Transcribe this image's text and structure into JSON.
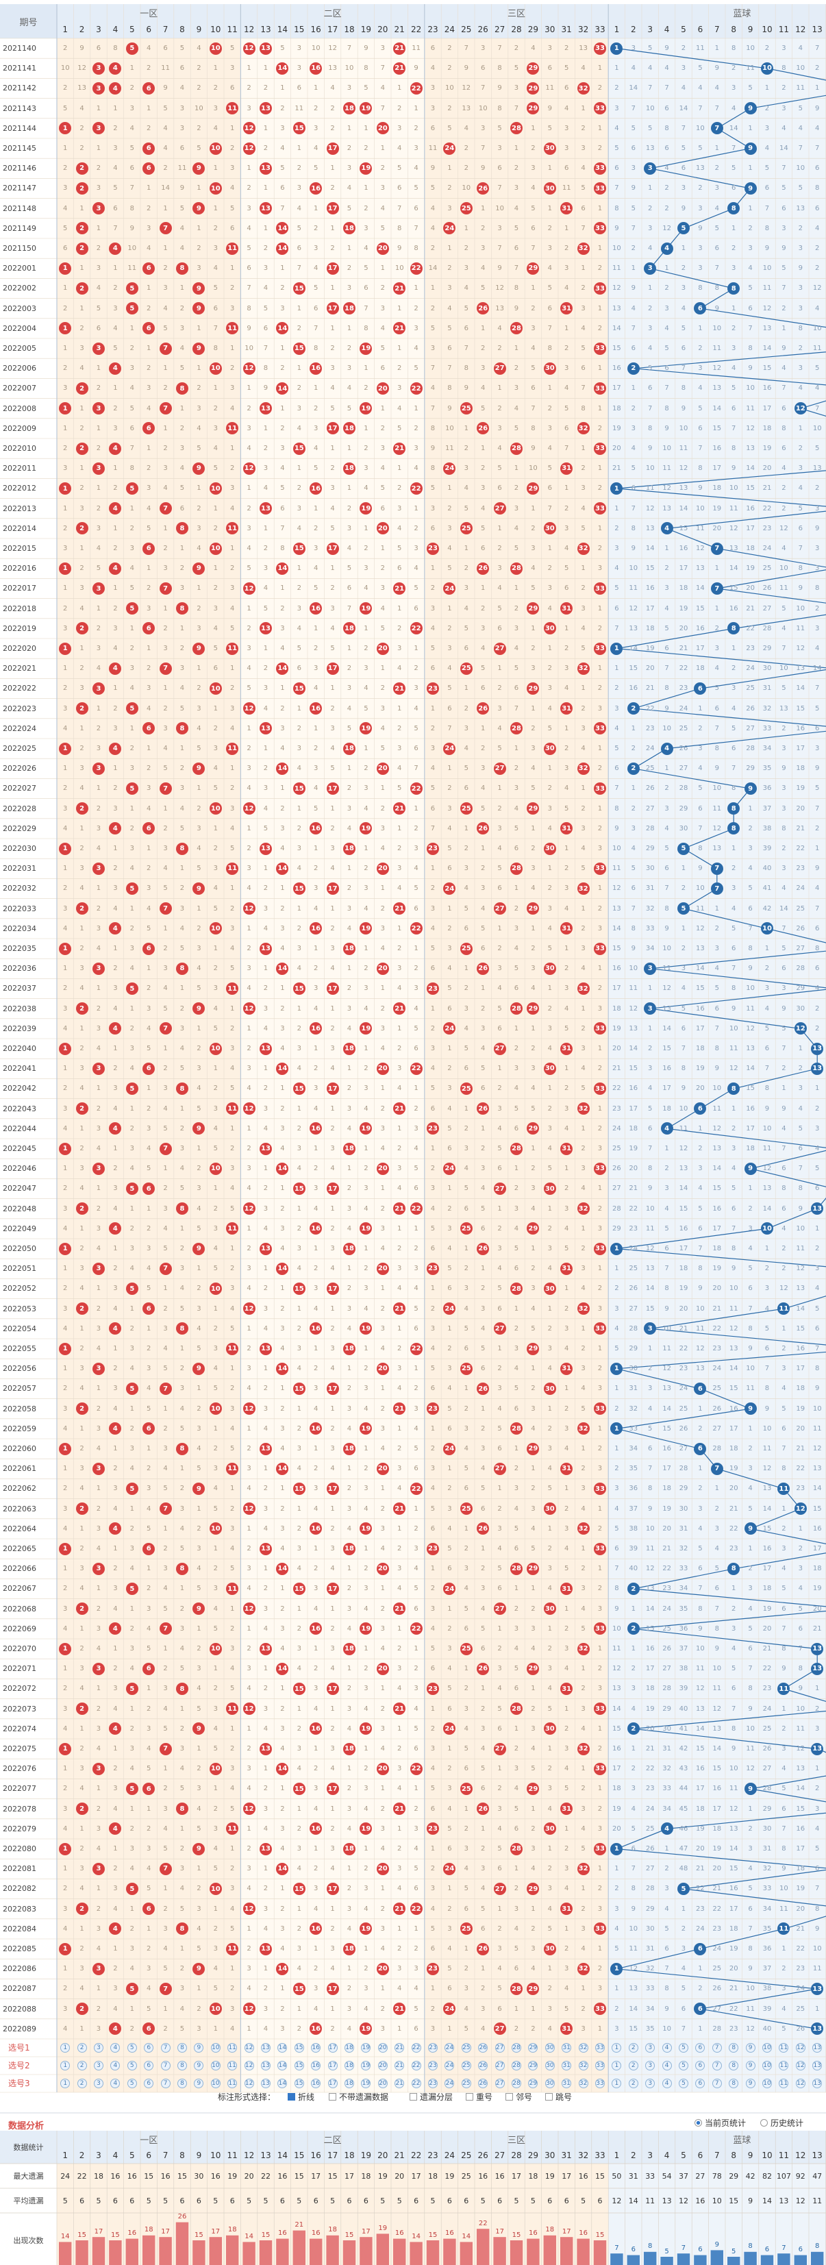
{
  "header": {
    "period_label": "期号",
    "zones": [
      "一区",
      "二区",
      "三区",
      "蓝球"
    ]
  },
  "periods": [
    "2021140",
    "2021141",
    "2021142",
    "2021143",
    "2021144",
    "2021145",
    "2021146",
    "2021147",
    "2021148",
    "2021149",
    "2021150",
    "2022001",
    "2022002",
    "2022003",
    "2022004",
    "2022005",
    "2022006",
    "2022007",
    "2022008",
    "2022009",
    "2022010",
    "2022011",
    "2022012",
    "2022013",
    "2022014",
    "2022015",
    "2022016",
    "2022017",
    "2022018",
    "2022019",
    "2022020",
    "2022021",
    "2022022",
    "2022023",
    "2022024",
    "2022025",
    "2022026",
    "2022027",
    "2022028",
    "2022029",
    "2022030",
    "2022031",
    "2022032",
    "2022033",
    "2022034",
    "2022035",
    "2022036",
    "2022037",
    "2022038",
    "2022039",
    "2022040",
    "2022041",
    "2022042",
    "2022043",
    "2022044",
    "2022045",
    "2022046",
    "2022047",
    "2022048",
    "2022049",
    "2022050",
    "2022051",
    "2022052",
    "2022053",
    "2022054",
    "2022055",
    "2022056",
    "2022057",
    "2022058",
    "2022059",
    "2022060",
    "2022061",
    "2022062",
    "2022063",
    "2022064",
    "2022065",
    "2022066",
    "2022067",
    "2022068",
    "2022069",
    "2022070",
    "2022071",
    "2022072",
    "2022073",
    "2022074",
    "2022075",
    "2022076",
    "2022077",
    "2022078",
    "2022079",
    "2022080",
    "2022081",
    "2022082",
    "2022083",
    "2022084",
    "2022085",
    "2022086",
    "2022087",
    "2022088",
    "2022089"
  ],
  "chart_data": {
    "type": "table",
    "red_range": [
      1,
      33
    ],
    "blue_range": [
      1,
      16
    ],
    "blue_balls": [
      1,
      10,
      16,
      9,
      7,
      9,
      3,
      9,
      8,
      5,
      4,
      3,
      8,
      6,
      14,
      16,
      2,
      16,
      12,
      16,
      15,
      15,
      1,
      15,
      4,
      7,
      14,
      7,
      16,
      8,
      1,
      14,
      6,
      2,
      15,
      4,
      2,
      9,
      8,
      8,
      5,
      7,
      7,
      5,
      10,
      15,
      3,
      14,
      3,
      12,
      13,
      13,
      8,
      6,
      4,
      14,
      9,
      14,
      13,
      10,
      1,
      15,
      15,
      11,
      3,
      16,
      1,
      6,
      9,
      1,
      6,
      7,
      11,
      12,
      9,
      15,
      8,
      2,
      15,
      2,
      13,
      13,
      11,
      15,
      2,
      13,
      16,
      9,
      16,
      4,
      1,
      14,
      5,
      15,
      11,
      6,
      1,
      13,
      6,
      13
    ],
    "red_balls": [
      [
        5,
        10,
        12,
        13,
        21,
        33
      ],
      [
        3,
        4,
        14,
        16,
        21,
        29
      ],
      [
        3,
        4,
        6,
        22,
        29,
        32
      ],
      [
        11,
        13,
        18,
        19,
        29,
        33
      ],
      [
        1,
        3,
        12,
        15,
        20,
        28
      ],
      [
        6,
        10,
        12,
        17,
        24,
        30
      ],
      [
        2,
        6,
        9,
        13,
        19,
        33
      ],
      [
        2,
        10,
        16,
        26,
        30,
        33
      ],
      [
        3,
        9,
        13,
        17,
        25,
        31
      ],
      [
        2,
        7,
        14,
        18,
        24,
        33
      ],
      [
        2,
        4,
        11,
        14,
        20,
        32
      ],
      [
        1,
        6,
        8,
        17,
        22,
        29
      ],
      [
        2,
        5,
        9,
        15,
        21,
        33
      ],
      [
        5,
        9,
        17,
        18,
        26,
        31
      ],
      [
        1,
        6,
        11,
        14,
        21,
        28
      ],
      [
        3,
        7,
        9,
        15,
        19,
        33
      ],
      [
        4,
        10,
        12,
        16,
        27,
        30
      ],
      [
        2,
        8,
        14,
        20,
        22,
        33
      ],
      [
        1,
        3,
        7,
        13,
        19,
        25
      ],
      [
        6,
        11,
        17,
        18,
        26,
        32
      ],
      [
        2,
        4,
        15,
        21,
        28,
        33
      ],
      [
        3,
        9,
        12,
        18,
        24,
        31
      ],
      [
        1,
        5,
        10,
        16,
        22,
        29
      ],
      [
        4,
        7,
        13,
        19,
        27,
        33
      ],
      [
        2,
        8,
        11,
        20,
        25,
        30
      ],
      [
        6,
        10,
        15,
        17,
        23,
        32
      ],
      [
        1,
        4,
        9,
        14,
        26,
        28
      ],
      [
        3,
        7,
        12,
        21,
        24,
        33
      ],
      [
        5,
        8,
        16,
        19,
        29,
        31
      ],
      [
        2,
        6,
        13,
        18,
        22,
        30
      ],
      [
        1,
        9,
        11,
        20,
        27,
        33
      ],
      [
        4,
        7,
        14,
        17,
        25,
        32
      ],
      [
        3,
        10,
        15,
        21,
        23,
        29
      ],
      [
        2,
        5,
        12,
        16,
        26,
        31
      ],
      [
        6,
        8,
        13,
        19,
        28,
        33
      ],
      [
        1,
        4,
        11,
        18,
        24,
        30
      ],
      [
        3,
        9,
        14,
        20,
        27,
        32
      ],
      [
        5,
        7,
        15,
        17,
        22,
        33
      ],
      [
        2,
        10,
        12,
        21,
        25,
        29
      ],
      [
        4,
        6,
        16,
        19,
        26,
        31
      ],
      [
        1,
        8,
        13,
        18,
        23,
        30
      ],
      [
        3,
        11,
        14,
        20,
        28,
        33
      ],
      [
        5,
        9,
        15,
        17,
        24,
        32
      ],
      [
        2,
        7,
        12,
        21,
        27,
        29
      ],
      [
        4,
        10,
        16,
        19,
        22,
        31
      ],
      [
        1,
        6,
        13,
        18,
        25,
        33
      ],
      [
        3,
        8,
        14,
        20,
        26,
        30
      ],
      [
        5,
        11,
        15,
        17,
        23,
        32
      ],
      [
        2,
        9,
        12,
        21,
        28,
        29
      ],
      [
        4,
        7,
        16,
        19,
        24,
        33
      ],
      [
        1,
        10,
        13,
        18,
        27,
        31
      ],
      [
        3,
        6,
        14,
        20,
        22,
        30
      ],
      [
        5,
        8,
        15,
        17,
        25,
        33
      ],
      [
        2,
        11,
        12,
        21,
        26,
        32
      ],
      [
        4,
        9,
        16,
        19,
        23,
        29
      ],
      [
        1,
        7,
        13,
        18,
        28,
        31
      ],
      [
        3,
        10,
        14,
        20,
        24,
        33
      ],
      [
        5,
        6,
        15,
        17,
        27,
        30
      ],
      [
        2,
        8,
        12,
        21,
        22,
        32
      ],
      [
        4,
        11,
        16,
        19,
        25,
        29
      ],
      [
        1,
        9,
        13,
        18,
        26,
        33
      ],
      [
        3,
        7,
        14,
        20,
        23,
        31
      ],
      [
        5,
        10,
        15,
        17,
        28,
        30
      ],
      [
        2,
        6,
        12,
        21,
        24,
        32
      ],
      [
        4,
        8,
        16,
        19,
        27,
        33
      ],
      [
        1,
        11,
        13,
        18,
        22,
        29
      ],
      [
        3,
        9,
        14,
        20,
        25,
        31
      ],
      [
        5,
        7,
        15,
        17,
        26,
        30
      ],
      [
        2,
        10,
        12,
        21,
        23,
        33
      ],
      [
        4,
        6,
        16,
        19,
        28,
        32
      ],
      [
        1,
        8,
        13,
        18,
        24,
        29
      ],
      [
        3,
        11,
        14,
        20,
        27,
        31
      ],
      [
        5,
        9,
        15,
        17,
        22,
        33
      ],
      [
        2,
        7,
        12,
        21,
        25,
        30
      ],
      [
        4,
        10,
        16,
        19,
        26,
        32
      ],
      [
        1,
        6,
        13,
        18,
        23,
        33
      ],
      [
        3,
        8,
        14,
        20,
        28,
        29
      ],
      [
        5,
        11,
        15,
        17,
        24,
        31
      ],
      [
        2,
        9,
        12,
        21,
        27,
        30
      ],
      [
        4,
        7,
        16,
        19,
        22,
        33
      ],
      [
        1,
        10,
        13,
        18,
        25,
        32
      ],
      [
        3,
        6,
        14,
        20,
        26,
        29
      ],
      [
        5,
        8,
        15,
        17,
        23,
        31
      ],
      [
        2,
        11,
        12,
        21,
        28,
        33
      ],
      [
        4,
        9,
        16,
        19,
        24,
        30
      ],
      [
        1,
        7,
        13,
        18,
        27,
        32
      ],
      [
        3,
        10,
        14,
        20,
        22,
        33
      ],
      [
        5,
        6,
        15,
        17,
        25,
        29
      ],
      [
        2,
        8,
        12,
        21,
        26,
        31
      ],
      [
        4,
        11,
        16,
        19,
        23,
        30
      ],
      [
        1,
        9,
        13,
        18,
        28,
        33
      ],
      [
        3,
        7,
        14,
        20,
        24,
        32
      ],
      [
        5,
        10,
        15,
        17,
        27,
        29
      ],
      [
        2,
        6,
        12,
        21,
        22,
        31
      ],
      [
        4,
        8,
        16,
        19,
        25,
        33
      ],
      [
        1,
        11,
        13,
        18,
        26,
        30
      ],
      [
        3,
        9,
        14,
        20,
        23,
        32
      ],
      [
        5,
        7,
        15,
        17,
        28,
        29
      ],
      [
        2,
        10,
        12,
        21,
        24,
        33
      ],
      [
        4,
        6,
        16,
        19,
        27,
        31
      ]
    ],
    "miss_sample": [
      3,
      0,
      2,
      1,
      4,
      6,
      8,
      2,
      1,
      5,
      9,
      3,
      7,
      11,
      2,
      4,
      6,
      1,
      3,
      8,
      12,
      5,
      2,
      9,
      4,
      1,
      7,
      3,
      10,
      6,
      2,
      5,
      13,
      4,
      1,
      8,
      3,
      6
    ]
  },
  "select_rows": [
    "选号1",
    "选号2",
    "选号3"
  ],
  "controls": {
    "label": "标注形式选择：",
    "options": [
      {
        "label": "折线",
        "checked": true
      },
      {
        "label": "不带遗漏数据",
        "checked": false
      },
      {
        "label": "遗漏分层",
        "checked": false
      },
      {
        "label": "重号",
        "checked": false
      },
      {
        "label": "邻号",
        "checked": false
      },
      {
        "label": "跳号",
        "checked": false
      }
    ]
  },
  "analysis": {
    "title": "数据分析",
    "radio": [
      {
        "label": "当前页统计",
        "checked": true
      },
      {
        "label": "历史统计",
        "checked": false
      }
    ],
    "row_labels": [
      "数据统计",
      "最大遗漏",
      "平均遗漏",
      "出现次数"
    ],
    "max_miss_red": [
      24,
      22,
      18,
      16,
      16,
      15,
      16,
      15,
      30,
      16,
      19,
      20,
      22,
      16,
      15,
      17,
      15,
      17,
      18,
      19,
      20,
      17,
      18,
      19,
      25,
      16,
      16,
      17,
      18,
      19,
      17,
      16,
      15
    ],
    "avg_miss_red": [
      5,
      6,
      5,
      6,
      6,
      5,
      5,
      6,
      6,
      5,
      6,
      5,
      5,
      6,
      5,
      6,
      5,
      6,
      6,
      5,
      5,
      6,
      5,
      6,
      6,
      5,
      6,
      5,
      5,
      6,
      6,
      5,
      6
    ],
    "count_red": [
      14,
      15,
      17,
      15,
      16,
      18,
      17,
      26,
      15,
      17,
      18,
      14,
      15,
      16,
      21,
      16,
      18,
      15,
      17,
      19,
      16,
      14,
      15,
      16,
      14,
      22,
      17,
      15,
      16,
      18,
      17,
      16,
      15
    ],
    "max_miss_blue": [
      50,
      31,
      33,
      54,
      37,
      27,
      78,
      29,
      42,
      82,
      107,
      92,
      47,
      94,
      56,
      58
    ],
    "avg_miss_blue": [
      12,
      14,
      11,
      13,
      12,
      16,
      10,
      15,
      9,
      14,
      13,
      12,
      11,
      16,
      14,
      10
    ],
    "count_blue": [
      7,
      6,
      8,
      5,
      7,
      6,
      9,
      5,
      8,
      6,
      7,
      6,
      8,
      5,
      9,
      7
    ]
  }
}
